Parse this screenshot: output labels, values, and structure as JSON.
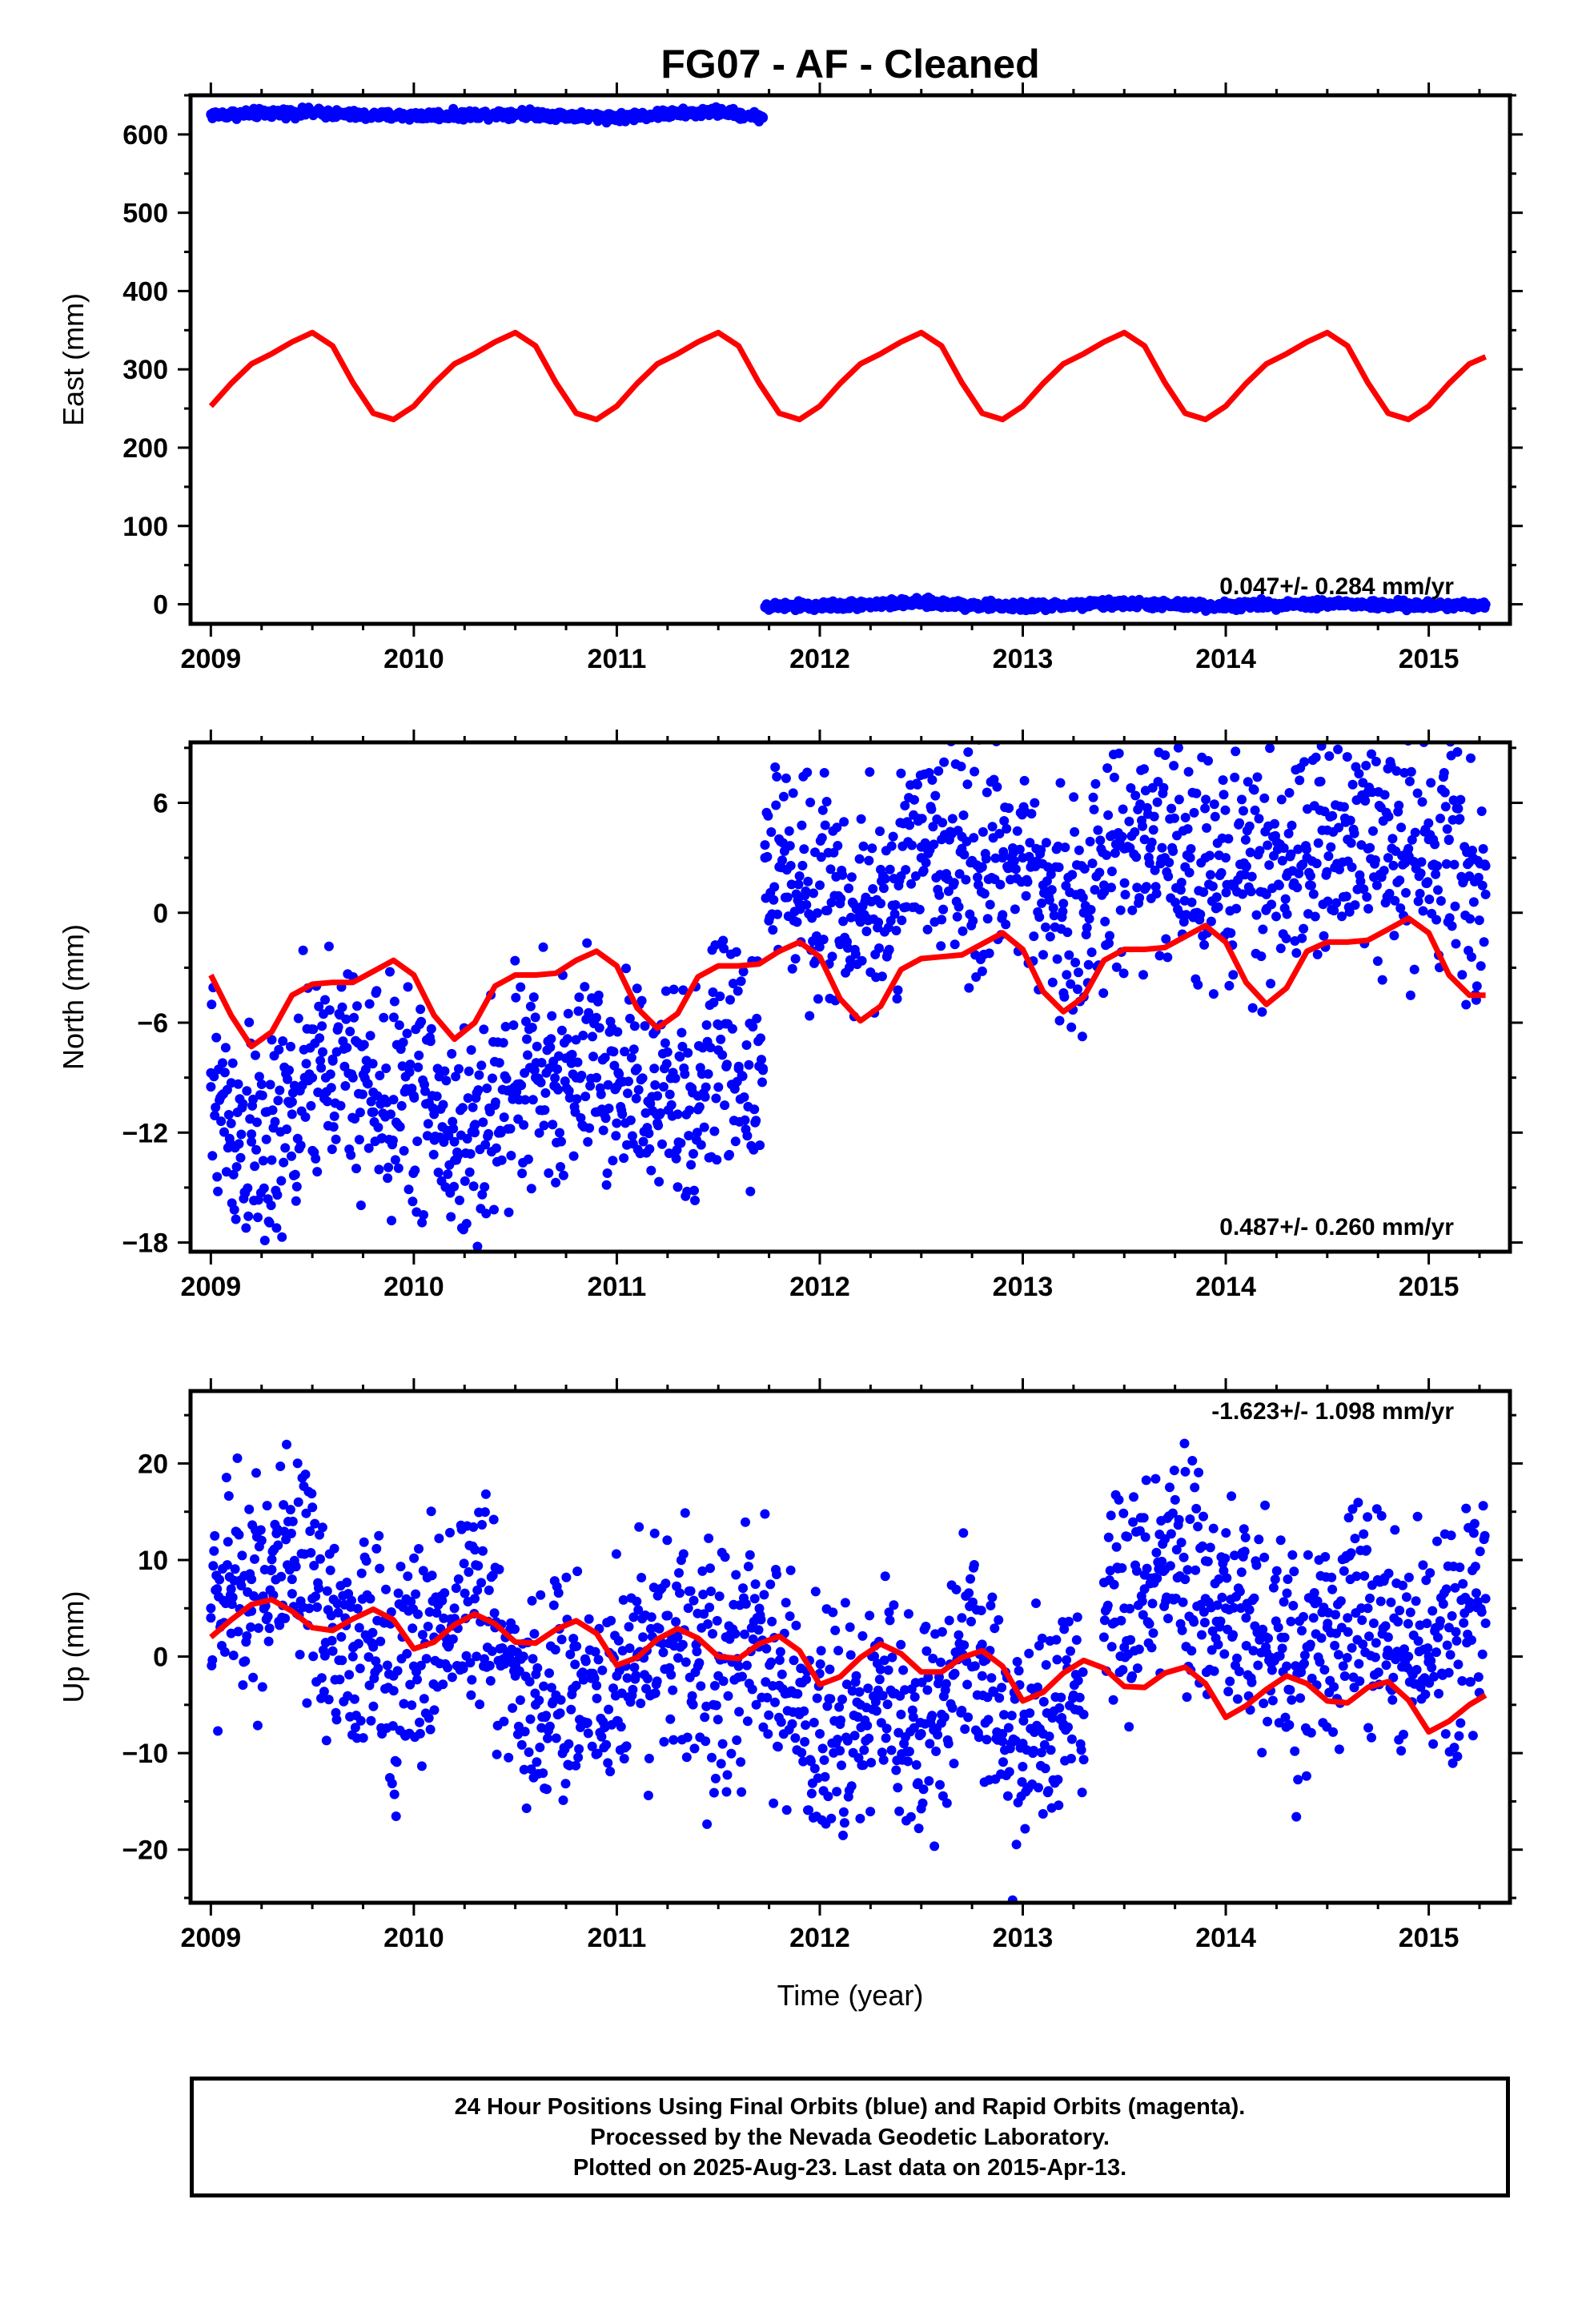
{
  "title": "FG07  - AF - Cleaned",
  "footer": {
    "line1": "24 Hour Positions Using Final Orbits (blue) and Rapid Orbits (magenta).",
    "line2": "Processed by the Nevada Geodetic Laboratory.",
    "line3": "Plotted on 2025-Aug-23. Last data on 2015-Apr-13."
  },
  "colors": {
    "data": "#0000ff",
    "model": "#ff0000",
    "frame": "#000000"
  },
  "chart_data": [
    {
      "type": "scatter",
      "title": "FG07  - AF - Cleaned",
      "ylabel": "East (mm)",
      "xlabel": "",
      "xlim": [
        2008.9,
        2015.4
      ],
      "ylim": [
        -25,
        650
      ],
      "xticks": [
        "2009",
        "2010",
        "2011",
        "2012",
        "2013",
        "2014",
        "2015"
      ],
      "yticks": [
        "0",
        "100",
        "200",
        "300",
        "400",
        "500",
        "600"
      ],
      "rate_label": "0.047+/- 0.284 mm/yr",
      "series": [
        {
          "kind": "data",
          "segments": [
            {
              "x": [
                2009.0,
                2009.25,
                2009.5,
                2009.75,
                2010.0,
                2010.25,
                2010.5,
                2010.75,
                2011.0,
                2011.25,
                2011.5,
                2011.72
              ],
              "y": [
                625,
                627,
                628,
                624,
                624,
                625,
                627,
                624,
                622,
                626,
                629,
                622
              ]
            },
            {
              "x": [
                2011.73,
                2012.0,
                2012.25,
                2012.5,
                2012.75,
                2013.0,
                2013.25,
                2013.5,
                2013.75,
                2014.0,
                2014.25,
                2014.5,
                2014.75,
                2015.0,
                2015.28
              ],
              "y": [
                -3,
                -2,
                0,
                2,
                -1,
                -3,
                -1,
                1,
                -1,
                -2,
                0,
                1,
                -1,
                -2,
                0
              ]
            }
          ]
        },
        {
          "kind": "model",
          "x": [
            2009.0,
            2009.1,
            2009.2,
            2009.3,
            2009.4,
            2009.5,
            2009.6,
            2009.7,
            2009.8,
            2009.9,
            2010.0,
            2010.1,
            2010.2,
            2010.3,
            2010.4,
            2010.5,
            2010.6,
            2010.7,
            2010.8,
            2010.9,
            2011.0,
            2011.1,
            2011.2,
            2011.3,
            2011.4,
            2011.5,
            2011.6,
            2011.7,
            2011.8,
            2011.9,
            2012.0,
            2012.1,
            2012.2,
            2012.3,
            2012.4,
            2012.5,
            2012.6,
            2012.7,
            2012.8,
            2012.9,
            2013.0,
            2013.1,
            2013.2,
            2013.3,
            2013.4,
            2013.5,
            2013.6,
            2013.7,
            2013.8,
            2013.9,
            2014.0,
            2014.1,
            2014.2,
            2014.3,
            2014.4,
            2014.5,
            2014.6,
            2014.7,
            2014.8,
            2014.9,
            2015.0,
            2015.1,
            2015.2,
            2015.28
          ],
          "y": [
            253,
            282,
            307,
            320,
            335,
            347,
            330,
            283,
            244,
            236,
            253,
            282,
            307,
            320,
            335,
            347,
            330,
            283,
            244,
            236,
            253,
            282,
            307,
            320,
            335,
            347,
            330,
            283,
            244,
            236,
            253,
            282,
            307,
            320,
            335,
            347,
            330,
            283,
            244,
            236,
            253,
            282,
            307,
            320,
            335,
            347,
            330,
            283,
            244,
            236,
            253,
            282,
            307,
            320,
            335,
            347,
            330,
            283,
            244,
            236,
            253,
            282,
            307,
            316
          ]
        }
      ]
    },
    {
      "type": "scatter",
      "ylabel": "North (mm)",
      "xlabel": "",
      "xlim": [
        2008.9,
        2015.4
      ],
      "ylim": [
        -18.5,
        9.3
      ],
      "xticks": [
        "2009",
        "2010",
        "2011",
        "2012",
        "2013",
        "2014",
        "2015"
      ],
      "yticks": [
        "-18",
        "-12",
        "-6",
        "0",
        "6"
      ],
      "rate_label": "0.487+/- 0.260 mm/yr",
      "series": [
        {
          "kind": "data",
          "segments": [
            {
              "x": [
                2009.0,
                2009.1,
                2009.2,
                2009.3,
                2009.4,
                2009.5,
                2009.6,
                2009.7,
                2009.8,
                2009.9,
                2010.0,
                2010.1,
                2010.2,
                2010.3,
                2010.4,
                2010.5,
                2010.6,
                2010.7,
                2010.8,
                2010.9,
                2011.0,
                2011.1,
                2011.2,
                2011.3,
                2011.4,
                2011.5,
                2011.6,
                2011.72
              ],
              "y": [
                -9.5,
                -11.5,
                -12.5,
                -13.5,
                -11.0,
                -9.0,
                -8.0,
                -9.0,
                -9.8,
                -10.2,
                -10.0,
                -11.0,
                -12.5,
                -12.0,
                -10.5,
                -9.5,
                -9.0,
                -9.5,
                -9.0,
                -9.0,
                -9.5,
                -8.5,
                -10.0,
                -11.0,
                -10.0,
                -7.5,
                -8.5,
                -8.5
              ]
            },
            {
              "x": [
                2011.73,
                2011.8,
                2011.9,
                2012.0,
                2012.1,
                2012.2,
                2012.3,
                2012.4,
                2012.5,
                2012.6,
                2012.7,
                2012.8,
                2012.9,
                2013.0,
                2013.1,
                2013.2,
                2013.3,
                2013.4,
                2013.5,
                2013.6,
                2013.7,
                2013.8,
                2013.9,
                2014.0,
                2014.1,
                2014.2,
                2014.3,
                2014.4,
                2014.5,
                2014.6,
                2014.7,
                2014.8,
                2014.9,
                2015.0,
                2015.1,
                2015.2,
                2015.28
              ],
              "y": [
                3.0,
                2.5,
                2.0,
                1.5,
                0.5,
                -0.5,
                0.5,
                2.0,
                3.0,
                4.0,
                3.5,
                2.5,
                3.0,
                3.0,
                1.5,
                0.5,
                0.0,
                1.5,
                3.5,
                4.0,
                3.0,
                2.5,
                3.0,
                3.0,
                2.5,
                1.0,
                2.0,
                3.0,
                4.5,
                4.0,
                3.5,
                3.0,
                3.5,
                4.0,
                4.0,
                2.0,
                1.0
              ]
            }
          ]
        },
        {
          "kind": "model",
          "x": [
            2009.0,
            2009.1,
            2009.2,
            2009.3,
            2009.4,
            2009.5,
            2009.6,
            2009.7,
            2009.8,
            2009.9,
            2010.0,
            2010.1,
            2010.2,
            2010.3,
            2010.4,
            2010.5,
            2010.6,
            2010.7,
            2010.8,
            2010.9,
            2011.0,
            2011.1,
            2011.2,
            2011.3,
            2011.4,
            2011.5,
            2011.6,
            2011.7,
            2011.8,
            2011.9,
            2012.0,
            2012.1,
            2012.2,
            2012.3,
            2012.4,
            2012.5,
            2012.6,
            2012.7,
            2012.8,
            2012.9,
            2013.0,
            2013.1,
            2013.2,
            2013.3,
            2013.4,
            2013.5,
            2013.6,
            2013.7,
            2013.8,
            2013.9,
            2014.0,
            2014.1,
            2014.2,
            2014.3,
            2014.4,
            2014.5,
            2014.6,
            2014.7,
            2014.8,
            2014.9,
            2015.0,
            2015.1,
            2015.2,
            2015.28
          ],
          "y": [
            -3.4,
            -5.6,
            -7.3,
            -6.5,
            -4.5,
            -3.9,
            -3.8,
            -3.8,
            -3.2,
            -2.6,
            -3.4,
            -5.6,
            -6.9,
            -6.0,
            -4.0,
            -3.4,
            -3.4,
            -3.3,
            -2.6,
            -2.1,
            -2.9,
            -5.2,
            -6.3,
            -5.5,
            -3.5,
            -2.9,
            -2.9,
            -2.8,
            -2.1,
            -1.6,
            -2.4,
            -4.7,
            -5.9,
            -5.1,
            -3.1,
            -2.5,
            -2.4,
            -2.3,
            -1.7,
            -1.1,
            -2.0,
            -4.3,
            -5.4,
            -4.6,
            -2.6,
            -2.0,
            -2.0,
            -1.9,
            -1.3,
            -0.7,
            -1.6,
            -3.8,
            -5.0,
            -4.1,
            -2.1,
            -1.6,
            -1.6,
            -1.5,
            -0.9,
            -0.3,
            -1.1,
            -3.4,
            -4.5,
            -4.5
          ]
        }
      ]
    },
    {
      "type": "scatter",
      "ylabel": "Up (mm)",
      "xlabel": "Time (year)",
      "xlim": [
        2008.9,
        2015.4
      ],
      "ylim": [
        -25.5,
        27.5
      ],
      "xticks": [
        "2009",
        "2010",
        "2011",
        "2012",
        "2013",
        "2014",
        "2015"
      ],
      "yticks": [
        "-20",
        "-10",
        "0",
        "10",
        "20"
      ],
      "rate_label": "-1.623+/- 1.098 mm/yr",
      "series": [
        {
          "kind": "data",
          "segments": [
            {
              "x": [
                2009.0,
                2009.1,
                2009.2,
                2009.3,
                2009.4,
                2009.5,
                2009.6,
                2009.7,
                2009.8,
                2009.9,
                2010.0,
                2010.1,
                2010.2,
                2010.3,
                2010.4,
                2010.5,
                2010.6,
                2010.7,
                2010.8,
                2010.9,
                2011.0,
                2011.1,
                2011.2,
                2011.3,
                2011.4,
                2011.5,
                2011.6,
                2011.7,
                2011.8,
                2011.9,
                2012.0,
                2012.1,
                2012.2,
                2012.3,
                2012.4,
                2012.5,
                2012.6,
                2012.7,
                2012.8,
                2012.9,
                2013.0,
                2013.1,
                2013.2,
                2013.3
              ],
              "y": [
                4,
                7,
                8,
                9,
                8,
                6,
                3,
                0,
                1,
                -2,
                -1,
                2,
                5,
                6,
                3,
                -2,
                -5,
                -4,
                -3,
                -3,
                -2,
                0,
                3,
                2,
                -1,
                -2,
                -1,
                1,
                -3,
                -6,
                -8,
                -7,
                -5,
                -4,
                -6,
                -8,
                -6,
                4,
                -2,
                -8,
                -9,
                -8,
                -7,
                -6
              ]
            },
            {
              "x": [
                2013.4,
                2013.5,
                2013.6,
                2013.7,
                2013.8,
                2013.9,
                2014.0,
                2014.1,
                2014.2,
                2014.3,
                2014.4,
                2014.5,
                2014.6,
                2014.7,
                2014.8,
                2014.9,
                2015.0,
                2015.1,
                2015.2,
                2015.28
              ],
              "y": [
                2,
                5,
                7,
                9,
                8,
                6,
                5,
                4,
                2,
                -1,
                1,
                3,
                4,
                5,
                2,
                0,
                0,
                3,
                5,
                6
              ]
            }
          ]
        },
        {
          "kind": "model",
          "x": [
            2009.0,
            2009.1,
            2009.2,
            2009.3,
            2009.4,
            2009.5,
            2009.6,
            2009.7,
            2009.8,
            2009.9,
            2010.0,
            2010.1,
            2010.2,
            2010.3,
            2010.4,
            2010.5,
            2010.6,
            2010.7,
            2010.8,
            2010.9,
            2011.0,
            2011.1,
            2011.2,
            2011.3,
            2011.4,
            2011.5,
            2011.6,
            2011.7,
            2011.8,
            2011.9,
            2012.0,
            2012.1,
            2012.2,
            2012.3,
            2012.4,
            2012.5,
            2012.6,
            2012.7,
            2012.8,
            2012.9,
            2013.0,
            2013.1,
            2013.2,
            2013.3,
            2013.4,
            2013.5,
            2013.6,
            2013.7,
            2013.8,
            2013.9,
            2014.0,
            2014.1,
            2014.2,
            2014.3,
            2014.4,
            2014.5,
            2014.6,
            2014.7,
            2014.8,
            2014.9,
            2015.0,
            2015.1,
            2015.2,
            2015.28
          ],
          "y": [
            2.0,
            3.8,
            5.4,
            5.9,
            4.7,
            3.0,
            2.7,
            3.9,
            4.9,
            3.8,
            0.8,
            1.5,
            3.3,
            4.4,
            3.4,
            1.5,
            1.4,
            2.8,
            3.7,
            2.4,
            -0.9,
            -0.1,
            1.8,
            2.9,
            1.9,
            0.0,
            -0.2,
            1.3,
            2.1,
            0.6,
            -2.9,
            -2.1,
            -0.1,
            1.3,
            0.3,
            -1.6,
            -1.6,
            -0.1,
            0.6,
            -1.0,
            -4.6,
            -3.7,
            -1.7,
            -0.4,
            -1.2,
            -3.1,
            -3.2,
            -1.7,
            -1.1,
            -2.8,
            -6.3,
            -5.1,
            -3.4,
            -2.0,
            -2.8,
            -4.6,
            -4.8,
            -3.2,
            -2.6,
            -4.5,
            -7.8,
            -6.7,
            -5.0,
            -4.0
          ]
        }
      ]
    }
  ]
}
